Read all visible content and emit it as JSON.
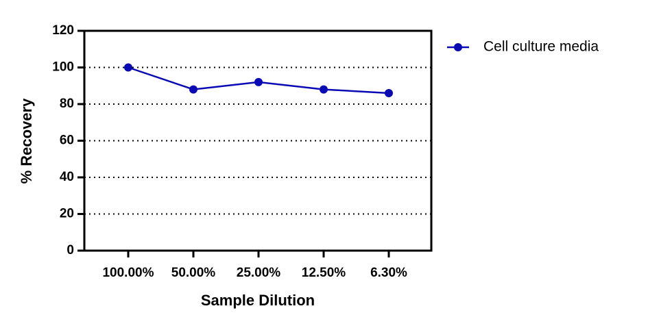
{
  "chart_data": {
    "type": "line",
    "categories": [
      "100.00%",
      "50.00%",
      "25.00%",
      "12.50%",
      "6.30%"
    ],
    "series": [
      {
        "name": "Cell culture media",
        "color": "#0a0ab4",
        "values": [
          100,
          88,
          92,
          88,
          86
        ]
      }
    ],
    "ylim": [
      0,
      120
    ],
    "yticks": [
      0,
      20,
      40,
      60,
      80,
      100,
      120
    ],
    "xlabel": "Sample Dilution",
    "ylabel": "% Recovery",
    "grid": true,
    "legend": "right"
  }
}
